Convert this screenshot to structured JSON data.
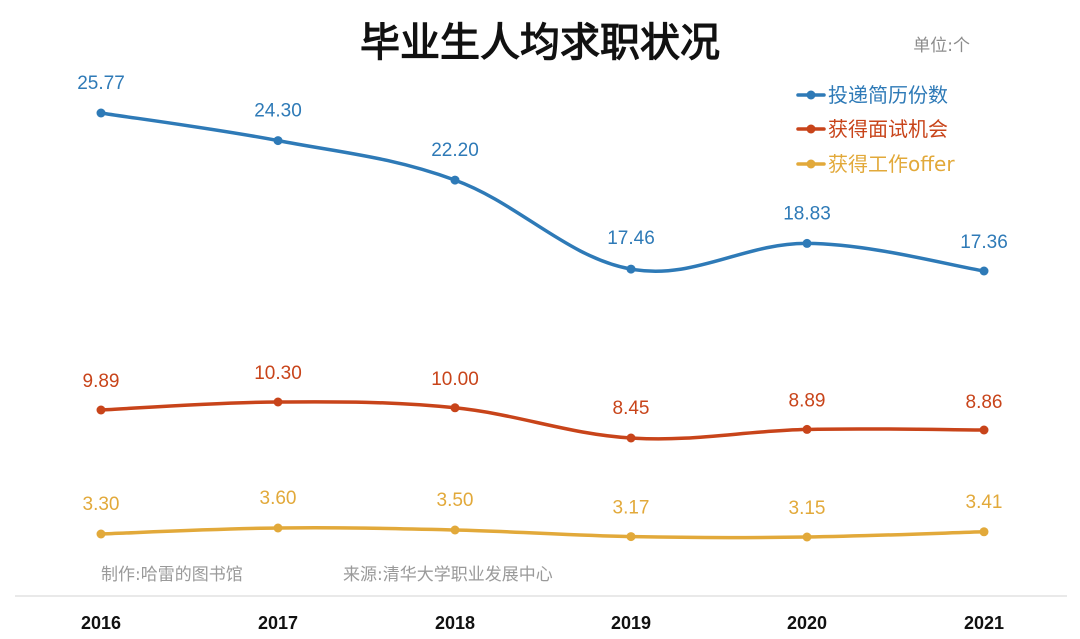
{
  "chart_data": {
    "type": "line",
    "title": "毕业生人均求职状况",
    "unit_label": "单位:个",
    "categories": [
      "2016",
      "2017",
      "2018",
      "2019",
      "2020",
      "2021"
    ],
    "series": [
      {
        "name": "投递简历份数",
        "color": "#2e7ab7",
        "values": [
          25.77,
          24.3,
          22.2,
          17.46,
          18.83,
          17.36
        ],
        "labels": [
          "25.77",
          "24.30",
          "22.20",
          "17.46",
          "18.83",
          "17.36"
        ]
      },
      {
        "name": "获得面试机会",
        "color": "#c8441a",
        "values": [
          9.89,
          10.3,
          10.0,
          8.45,
          8.89,
          8.86
        ],
        "labels": [
          "9.89",
          "10.30",
          "10.00",
          "8.45",
          "8.89",
          "8.86"
        ]
      },
      {
        "name": "获得工作offer",
        "color": "#e2a93a",
        "values": [
          3.3,
          3.6,
          3.5,
          3.17,
          3.15,
          3.41
        ],
        "labels": [
          "3.30",
          "3.60",
          "3.50",
          "3.17",
          "3.15",
          "3.41"
        ]
      }
    ],
    "legend_position": "top-right",
    "grid": false,
    "y_axis_visible": false,
    "smooth_lines": true
  },
  "credits": {
    "maker": "制作:哈雷的图书馆",
    "source": "来源:清华大学职业发展中心"
  }
}
